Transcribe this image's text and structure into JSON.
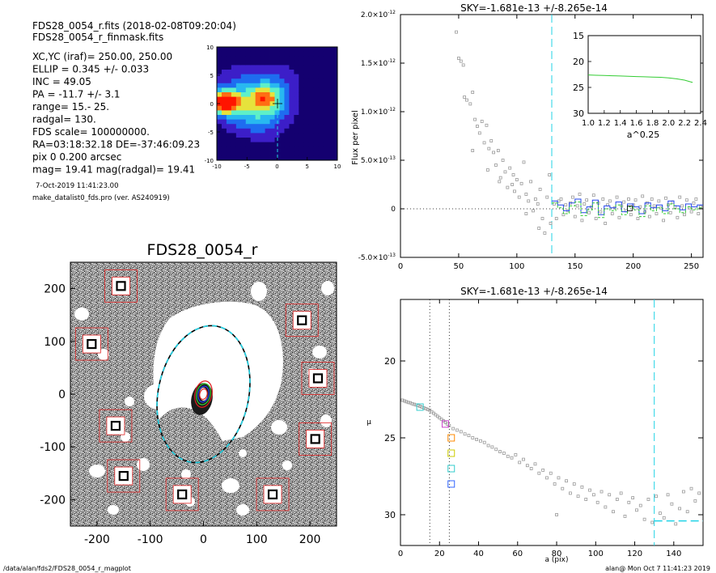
{
  "header": {
    "file_line": "FDS28_0054_r.fits  (2018-02-08T09:20:04)",
    "mask_line": "FDS28_0054_r_finmask.fits",
    "params": [
      "XC,YC (iraf)=   250.00, 250.00",
      "ELLIP = 0.345 +/- 0.033",
      "INC   = 49.05",
      "PA    = -11.7 +/-   3.1",
      "range=   15.-   25.",
      "radgal=  130.",
      "FDS scale=  100000000.",
      "RA=03:18:32.18   DE=-37:46:09.23",
      "pix 0 0.200 arcsec",
      "mag=  19.41   mag(radgal)=  19.41"
    ],
    "date_line": "7-Oct-2019 11:41:23.00",
    "program_line": "make_datalist0_fds.pro (ver. AS240919)"
  },
  "footer": {
    "path": "/data/alan/fds2/FDS28_0054_r_magplot",
    "stamp": "alan@  Mon Oct  7 11:41:23 2019"
  },
  "colors": {
    "cyan": "#22d3e6",
    "red": "#e02020",
    "green": "#33cc33",
    "blue": "#2244ee",
    "gray_point": "#999999",
    "image_background": "#888888"
  },
  "chart_data": [
    {
      "type": "heatmap",
      "title": "",
      "xlim": [
        -10,
        10
      ],
      "ylim": [
        -10,
        10
      ],
      "x_ticks": [
        "-10",
        "-5",
        "0",
        "5",
        "10"
      ],
      "y_ticks": [
        "-10",
        "-5",
        "0",
        "5",
        "10"
      ],
      "colormap": [
        "#140070",
        "#3c1ec8",
        "#1e6cf0",
        "#28b8f0",
        "#5ef0c8",
        "#e6e23c",
        "#ff6e14",
        "#ff1400"
      ],
      "blobs": [
        {
          "x": -8.8,
          "y": 0.2,
          "sx": 1.6,
          "sy": 1.4,
          "amp": 7.2
        },
        {
          "x": -5.5,
          "y": 0.5,
          "sx": 3.5,
          "sy": 3.0,
          "amp": 3.2
        },
        {
          "x": -1.8,
          "y": 1.0,
          "sx": 1.8,
          "sy": 1.7,
          "amp": 3.4
        },
        {
          "x": -2.5,
          "y": -2.5,
          "sx": 3.5,
          "sy": 3.5,
          "amp": 2.0
        },
        {
          "x": 1.2,
          "y": 2.0,
          "sx": 2.5,
          "sy": 3.0,
          "amp": 1.2
        },
        {
          "x": -3.0,
          "y": 5.5,
          "sx": 6.0,
          "sy": 2.0,
          "amp": 0.8
        }
      ]
    },
    {
      "type": "scatter",
      "title": "FDS28_0054_r",
      "xlim": [
        -250,
        250
      ],
      "ylim": [
        -250,
        250
      ],
      "x_ticks": [
        "-200",
        "-100",
        "0",
        "100",
        "200"
      ],
      "y_ticks": [
        "-200",
        "-100",
        "0",
        "100",
        "200"
      ],
      "ellipse": {
        "x": 0,
        "y": 0,
        "a": 130,
        "b": 85,
        "pa_deg": -11.7
      },
      "inner_ellipses": [
        {
          "a": 25,
          "b": 16,
          "color": "#e02020"
        },
        {
          "a": 20,
          "b": 13,
          "color": "#33cc33"
        },
        {
          "a": 15,
          "b": 10,
          "color": "#2244ee"
        },
        {
          "a": 10,
          "b": 7,
          "color": "#e02020"
        }
      ],
      "masked_stars": [
        {
          "x": -155,
          "y": 205
        },
        {
          "x": -210,
          "y": 95
        },
        {
          "x": 185,
          "y": 140
        },
        {
          "x": 215,
          "y": 30
        },
        {
          "x": -165,
          "y": -60
        },
        {
          "x": 210,
          "y": -85
        },
        {
          "x": -150,
          "y": -155
        },
        {
          "x": -40,
          "y": -190
        },
        {
          "x": 130,
          "y": -190
        }
      ]
    },
    {
      "type": "scatter",
      "title": "SKY=-1.681e-13 +/-8.265e-14",
      "xlabel": "",
      "ylabel": "Flux per pixel",
      "xlim": [
        0,
        260
      ],
      "ylim": [
        -5e-13,
        2e-12
      ],
      "x_ticks": [
        "0",
        "50",
        "100",
        "150",
        "200",
        "250"
      ],
      "y_ticks": [
        {
          "v": -5e-13,
          "m": "-5.0",
          "e": "-13"
        },
        {
          "v": 0,
          "m": "0",
          "e": ""
        },
        {
          "v": 5e-13,
          "m": "5.0",
          "e": "-13"
        },
        {
          "v": 1e-12,
          "m": "1.0",
          "e": "-12"
        },
        {
          "v": 1.5e-12,
          "m": "1.5",
          "e": "-12"
        },
        {
          "v": 2e-12,
          "m": "2.0",
          "e": "-12"
        }
      ],
      "vline_x": 130,
      "points": [
        [
          48,
          1.82e-12
        ],
        [
          50,
          1.55e-12
        ],
        [
          52,
          1.52e-12
        ],
        [
          54,
          1.48e-12
        ],
        [
          55,
          1.15e-12
        ],
        [
          57,
          1.12e-12
        ],
        [
          60,
          1.08e-12
        ],
        [
          62,
          1.2e-12
        ],
        [
          64,
          9.2e-13
        ],
        [
          66,
          8.5e-13
        ],
        [
          68,
          7.8e-13
        ],
        [
          70,
          9e-13
        ],
        [
          72,
          6.8e-13
        ],
        [
          74,
          8.6e-13
        ],
        [
          76,
          6.2e-13
        ],
        [
          78,
          7e-13
        ],
        [
          80,
          5.8e-13
        ],
        [
          82,
          4.5e-13
        ],
        [
          84,
          6e-13
        ],
        [
          86,
          3.2e-13
        ],
        [
          88,
          5e-13
        ],
        [
          90,
          3.8e-13
        ],
        [
          92,
          2.2e-13
        ],
        [
          94,
          4.2e-13
        ],
        [
          96,
          2.5e-13
        ],
        [
          98,
          1.8e-13
        ],
        [
          100,
          3e-13
        ],
        [
          102,
          1.2e-13
        ],
        [
          104,
          2.6e-13
        ],
        [
          106,
          4.8e-13
        ],
        [
          108,
          1.5e-13
        ],
        [
          110,
          8e-14
        ],
        [
          112,
          2.8e-13
        ],
        [
          114,
          -2e-14
        ],
        [
          116,
          1e-13
        ],
        [
          118,
          5e-14
        ],
        [
          120,
          2e-13
        ],
        [
          122,
          -1e-13
        ],
        [
          124,
          -2.5e-13
        ],
        [
          126,
          1.2e-13
        ],
        [
          128,
          3.5e-13
        ],
        [
          129,
          -1.5e-13
        ],
        [
          62,
          6e-13
        ],
        [
          75,
          4e-13
        ],
        [
          85,
          2.8e-13
        ],
        [
          97,
          3.5e-13
        ],
        [
          108,
          -5e-14
        ],
        [
          119,
          -2e-13
        ],
        [
          132,
          5e-14
        ],
        [
          134,
          -1e-13
        ],
        [
          136,
          8e-14
        ],
        [
          138,
          1e-13
        ],
        [
          140,
          -6e-14
        ],
        [
          142,
          4e-14
        ],
        [
          144,
          -2e-14
        ],
        [
          146,
          6e-14
        ],
        [
          148,
          1.2e-13
        ],
        [
          150,
          -8e-14
        ],
        [
          152,
          3e-14
        ],
        [
          154,
          1.5e-13
        ],
        [
          156,
          -1.2e-13
        ],
        [
          158,
          5e-14
        ],
        [
          160,
          9e-14
        ],
        [
          162,
          -4e-14
        ],
        [
          164,
          2e-14
        ],
        [
          166,
          1.4e-13
        ],
        [
          168,
          -1e-13
        ],
        [
          170,
          6e-14
        ],
        [
          172,
          -3e-14
        ],
        [
          174,
          1e-13
        ],
        [
          176,
          -1.5e-13
        ],
        [
          178,
          4e-14
        ],
        [
          180,
          8e-14
        ],
        [
          182,
          -5e-14
        ],
        [
          184,
          1e-14
        ],
        [
          186,
          1.2e-13
        ],
        [
          188,
          -9e-14
        ],
        [
          190,
          3e-14
        ],
        [
          192,
          7e-14
        ],
        [
          194,
          -2e-14
        ],
        [
          196,
          1e-13
        ],
        [
          198,
          -6e-14
        ],
        [
          200,
          4e-14
        ],
        [
          202,
          9e-14
        ],
        [
          204,
          -1e-13
        ],
        [
          206,
          2e-14
        ],
        [
          208,
          1.3e-13
        ],
        [
          210,
          -3e-14
        ],
        [
          212,
          6e-14
        ],
        [
          214,
          -8e-14
        ],
        [
          216,
          1e-13
        ],
        [
          218,
          3e-14
        ],
        [
          220,
          -5e-14
        ],
        [
          222,
          8e-14
        ],
        [
          224,
          1e-14
        ],
        [
          226,
          -1.2e-13
        ],
        [
          228,
          1.1e-13
        ],
        [
          230,
          4e-14
        ],
        [
          232,
          -4e-14
        ],
        [
          234,
          7e-14
        ],
        [
          236,
          2e-14
        ],
        [
          238,
          -9e-14
        ],
        [
          240,
          1.2e-13
        ],
        [
          242,
          3e-14
        ],
        [
          244,
          -6e-14
        ],
        [
          246,
          9e-14
        ],
        [
          248,
          1e-14
        ],
        [
          250,
          -3e-14
        ],
        [
          252,
          6e-14
        ],
        [
          254,
          1e-13
        ],
        [
          256,
          -5e-14
        ],
        [
          258,
          2e-14
        ]
      ],
      "steps": [
        {
          "name": "blue",
          "color": "#2244ee",
          "x": [
            130,
            135,
            140,
            145,
            150,
            155,
            160,
            165,
            170,
            175,
            180,
            185,
            190,
            195,
            200,
            205,
            210,
            215,
            220,
            225,
            230,
            235,
            240,
            245,
            250,
            255,
            260
          ],
          "y": [
            8e-14,
            4e-14,
            -2e-14,
            6e-14,
            1e-13,
            -4e-14,
            2e-14,
            9e-14,
            -6e-14,
            3e-14,
            1e-14,
            7e-14,
            -3e-14,
            5e-14,
            2e-14,
            -5e-14,
            6e-14,
            1e-14,
            4e-14,
            -2e-14,
            8e-14,
            3e-14,
            -1e-14,
            5e-14,
            2e-14,
            4e-14,
            4e-14
          ]
        },
        {
          "name": "green",
          "color": "#33cc33",
          "x": [
            130,
            135,
            140,
            145,
            150,
            155,
            160,
            165,
            170,
            175,
            180,
            185,
            190,
            195,
            200,
            205,
            210,
            215,
            220,
            225,
            230,
            235,
            240,
            245,
            250,
            255,
            260
          ],
          "y": [
            6e-14,
            1e-14,
            -5e-14,
            3e-14,
            7e-14,
            -7e-14,
            -1e-14,
            6e-14,
            -9e-14,
            0,
            -2e-14,
            4e-14,
            -6e-14,
            2e-14,
            -1e-14,
            -8e-14,
            3e-14,
            -2e-14,
            1e-14,
            -5e-14,
            5e-14,
            0,
            -4e-14,
            2e-14,
            -1e-14,
            1e-14,
            1e-14
          ]
        }
      ],
      "marker_point": [
        197,
        4e-15
      ],
      "inset": {
        "xlim": [
          1.0,
          2.4
        ],
        "ylim": [
          30,
          15
        ],
        "xlabel": "a^0.25",
        "x_ticks": [
          "1.0",
          "1.2",
          "1.4",
          "1.6",
          "1.8",
          "2.0",
          "2.2",
          "2.4"
        ],
        "y_ticks": [
          "15",
          "20",
          "25",
          "30"
        ],
        "x": [
          1.0,
          1.1,
          1.2,
          1.3,
          1.4,
          1.5,
          1.6,
          1.7,
          1.8,
          1.9,
          2.0,
          2.1,
          2.2,
          2.3
        ],
        "y": [
          22.6,
          22.65,
          22.7,
          22.75,
          22.8,
          22.85,
          22.9,
          22.95,
          23.0,
          23.05,
          23.15,
          23.35,
          23.6,
          24.05
        ]
      }
    },
    {
      "type": "scatter",
      "title": "SKY=-1.681e-13 +/-8.265e-14",
      "xlabel": "a (pix)",
      "ylabel": "μ",
      "xlim": [
        0,
        155
      ],
      "ylim": [
        32,
        16
      ],
      "x_ticks": [
        "0",
        "20",
        "40",
        "60",
        "80",
        "100",
        "120",
        "140"
      ],
      "y_ticks": [
        "20",
        "25",
        "30"
      ],
      "vlines_dotted": [
        15,
        25
      ],
      "vline_dashed": 130,
      "hline_dashed": {
        "x": [
          130,
          155
        ],
        "y": 30.4
      },
      "points": [
        [
          1,
          22.55
        ],
        [
          2,
          22.6
        ],
        [
          3,
          22.65
        ],
        [
          4,
          22.7
        ],
        [
          5,
          22.72
        ],
        [
          6,
          22.78
        ],
        [
          7,
          22.82
        ],
        [
          8,
          22.86
        ],
        [
          9,
          22.9
        ],
        [
          10,
          22.95
        ],
        [
          11,
          23.0
        ],
        [
          12,
          23.05
        ],
        [
          13,
          23.1
        ],
        [
          14,
          23.15
        ],
        [
          15,
          23.2
        ],
        [
          16,
          23.3
        ],
        [
          17,
          23.4
        ],
        [
          18,
          23.5
        ],
        [
          19,
          23.6
        ],
        [
          20,
          23.7
        ],
        [
          21,
          23.8
        ],
        [
          22,
          23.9
        ],
        [
          23,
          24.0
        ],
        [
          24,
          24.1
        ],
        [
          25,
          24.2
        ],
        [
          27,
          24.4
        ],
        [
          29,
          24.5
        ],
        [
          31,
          24.6
        ],
        [
          33,
          24.75
        ],
        [
          35,
          24.85
        ],
        [
          37,
          25.0
        ],
        [
          39,
          25.1
        ],
        [
          41,
          25.2
        ],
        [
          43,
          25.3
        ],
        [
          45,
          25.5
        ],
        [
          47,
          25.6
        ],
        [
          49,
          25.75
        ],
        [
          51,
          25.9
        ],
        [
          53,
          26.0
        ],
        [
          55,
          26.2
        ],
        [
          57,
          26.3
        ],
        [
          59,
          26.1
        ],
        [
          61,
          26.6
        ],
        [
          63,
          26.4
        ],
        [
          65,
          26.8
        ],
        [
          67,
          27.0
        ],
        [
          69,
          26.7
        ],
        [
          71,
          27.3
        ],
        [
          73,
          27.1
        ],
        [
          75,
          27.6
        ],
        [
          77,
          27.3
        ],
        [
          79,
          28.0
        ],
        [
          80,
          30.0
        ],
        [
          81,
          27.6
        ],
        [
          83,
          28.3
        ],
        [
          85,
          27.8
        ],
        [
          87,
          28.6
        ],
        [
          89,
          28.0
        ],
        [
          91,
          28.8
        ],
        [
          93,
          28.2
        ],
        [
          95,
          29.0
        ],
        [
          97,
          28.4
        ],
        [
          99,
          28.7
        ],
        [
          101,
          29.2
        ],
        [
          103,
          28.5
        ],
        [
          105,
          29.5
        ],
        [
          107,
          28.7
        ],
        [
          109,
          29.8
        ],
        [
          111,
          29.0
        ],
        [
          113,
          28.6
        ],
        [
          115,
          30.1
        ],
        [
          117,
          29.2
        ],
        [
          119,
          28.9
        ],
        [
          121,
          29.7
        ],
        [
          123,
          29.4
        ],
        [
          125,
          30.3
        ],
        [
          127,
          29.0
        ],
        [
          129,
          30.5
        ],
        [
          131,
          28.8
        ],
        [
          133,
          29.9
        ],
        [
          135,
          30.2
        ],
        [
          137,
          28.7
        ],
        [
          139,
          29.3
        ],
        [
          141,
          30.6
        ],
        [
          143,
          29.6
        ],
        [
          145,
          28.5
        ],
        [
          147,
          29.8
        ],
        [
          149,
          28.3
        ],
        [
          151,
          29.1
        ],
        [
          153,
          28.6
        ]
      ],
      "markers": [
        {
          "x": 10,
          "y": 23.0,
          "color": "#33cccc"
        },
        {
          "x": 23,
          "y": 24.1,
          "color": "#cc44cc"
        },
        {
          "x": 26,
          "y": 25.0,
          "color": "#ff8800"
        },
        {
          "x": 26,
          "y": 26.0,
          "color": "#cccc00"
        },
        {
          "x": 26,
          "y": 27.0,
          "color": "#33cccc"
        },
        {
          "x": 26,
          "y": 28.0,
          "color": "#3366ff"
        }
      ]
    }
  ]
}
